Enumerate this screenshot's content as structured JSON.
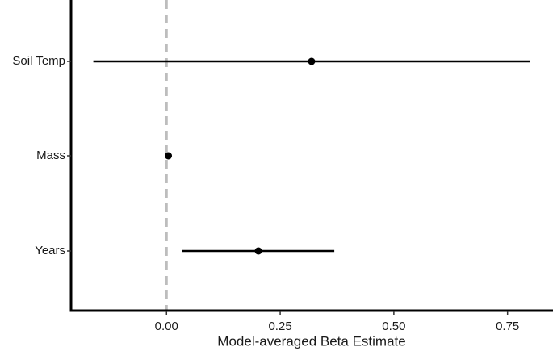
{
  "chart_data": {
    "type": "errorbar",
    "x_label": "Model-averaged Beta Estimate",
    "categories": [
      "Soil Temp",
      "Mass",
      "Years"
    ],
    "values": [
      0.319,
      0.004,
      0.202
    ],
    "lower": [
      -0.161,
      0.0,
      0.035
    ],
    "upper": [
      0.8,
      0.008,
      0.369
    ],
    "color": "#000000",
    "xlim": [
      -0.21,
      0.85
    ],
    "xticks": [
      {
        "value": 0,
        "label": "0.00"
      },
      {
        "value": 0.25,
        "label": "0.25"
      },
      {
        "value": 0.5,
        "label": "0.50"
      },
      {
        "value": 0.75,
        "label": "0.75"
      }
    ],
    "reference_line": 0,
    "reference_color": "#bdbdbd"
  }
}
